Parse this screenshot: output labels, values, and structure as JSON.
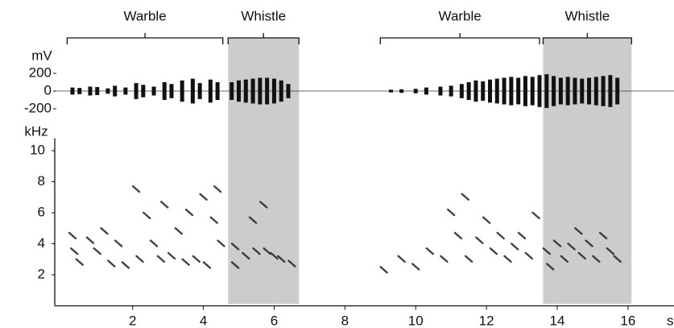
{
  "chart_data": [
    {
      "type": "waveform",
      "y_label": "mV",
      "color": "#111111",
      "shade_color": "#cccccc",
      "xlim": [
        -0.2,
        17.3
      ],
      "ylim": [
        -250,
        250
      ],
      "yticks": [
        200,
        0,
        -200
      ],
      "annotations": [
        {
          "label": "Warble",
          "start": 0.15,
          "end": 4.55
        },
        {
          "label": "Whistle",
          "start": 4.7,
          "end": 6.7
        },
        {
          "label": "Warble",
          "start": 9.0,
          "end": 13.5
        },
        {
          "label": "Whistle",
          "start": 13.6,
          "end": 16.1
        }
      ],
      "shaded": [
        [
          4.7,
          6.7
        ],
        [
          13.6,
          16.1
        ]
      ],
      "x": [
        0.3,
        0.5,
        0.8,
        1.0,
        1.3,
        1.5,
        1.8,
        2.1,
        2.3,
        2.6,
        2.9,
        3.1,
        3.4,
        3.7,
        3.9,
        4.2,
        4.4,
        4.8,
        5.0,
        5.2,
        5.4,
        5.6,
        5.8,
        6.0,
        6.2,
        6.4,
        9.3,
        9.6,
        10.0,
        10.3,
        10.7,
        11.0,
        11.3,
        11.5,
        11.7,
        11.9,
        12.1,
        12.3,
        12.5,
        12.7,
        12.9,
        13.1,
        13.3,
        13.5,
        13.7,
        13.9,
        14.1,
        14.3,
        14.5,
        14.7,
        14.9,
        15.1,
        15.3,
        15.5,
        15.7
      ],
      "values": [
        40,
        35,
        50,
        45,
        30,
        60,
        40,
        90,
        70,
        50,
        100,
        80,
        120,
        140,
        90,
        130,
        100,
        100,
        120,
        130,
        140,
        150,
        150,
        140,
        120,
        80,
        15,
        20,
        25,
        40,
        50,
        60,
        80,
        100,
        120,
        110,
        130,
        140,
        150,
        160,
        150,
        170,
        160,
        180,
        190,
        170,
        150,
        160,
        150,
        140,
        150,
        160,
        170,
        180,
        150
      ]
    },
    {
      "type": "scatter",
      "y_label": "kHz",
      "x_label": "s",
      "color": "#222222",
      "xlim": [
        -0.2,
        17.3
      ],
      "xticks": [
        2,
        4,
        6,
        8,
        10,
        12,
        14,
        16
      ],
      "ylim": [
        0,
        10.8
      ],
      "yticks": [
        2,
        4,
        6,
        8,
        10
      ],
      "x": [
        0.3,
        0.35,
        0.5,
        0.8,
        1.0,
        1.2,
        1.4,
        1.6,
        1.8,
        2.1,
        2.2,
        2.4,
        2.6,
        2.8,
        2.9,
        3.1,
        3.3,
        3.5,
        3.6,
        3.8,
        4.0,
        4.1,
        4.3,
        4.4,
        4.5,
        4.9,
        4.9,
        5.2,
        5.4,
        5.5,
        5.7,
        5.8,
        6.0,
        6.2,
        6.5,
        9.1,
        9.6,
        10.0,
        10.4,
        10.8,
        11.0,
        11.2,
        11.4,
        11.5,
        11.8,
        12.0,
        12.2,
        12.4,
        12.6,
        12.8,
        13.0,
        13.2,
        13.4,
        13.7,
        13.8,
        14.0,
        14.2,
        14.4,
        14.6,
        14.7,
        14.9,
        15.1,
        15.3,
        15.5,
        15.7
      ],
      "values": [
        4.5,
        3.5,
        2.8,
        4.2,
        3.5,
        4.8,
        2.7,
        4.0,
        2.6,
        7.5,
        3.0,
        5.8,
        4.0,
        3.0,
        6.5,
        3.2,
        4.8,
        2.8,
        6.0,
        3.0,
        7.0,
        2.6,
        5.5,
        7.5,
        4.0,
        3.8,
        2.6,
        3.2,
        5.5,
        3.5,
        6.5,
        3.5,
        3.2,
        3.0,
        2.7,
        2.3,
        3.0,
        2.5,
        3.5,
        3.0,
        6.0,
        4.5,
        7.0,
        3.0,
        4.2,
        5.5,
        3.5,
        4.5,
        3.0,
        3.8,
        4.5,
        3.2,
        5.8,
        3.5,
        2.5,
        4.0,
        3.0,
        3.8,
        4.8,
        3.2,
        4.0,
        3.0,
        4.5,
        3.5,
        3.0
      ]
    }
  ]
}
